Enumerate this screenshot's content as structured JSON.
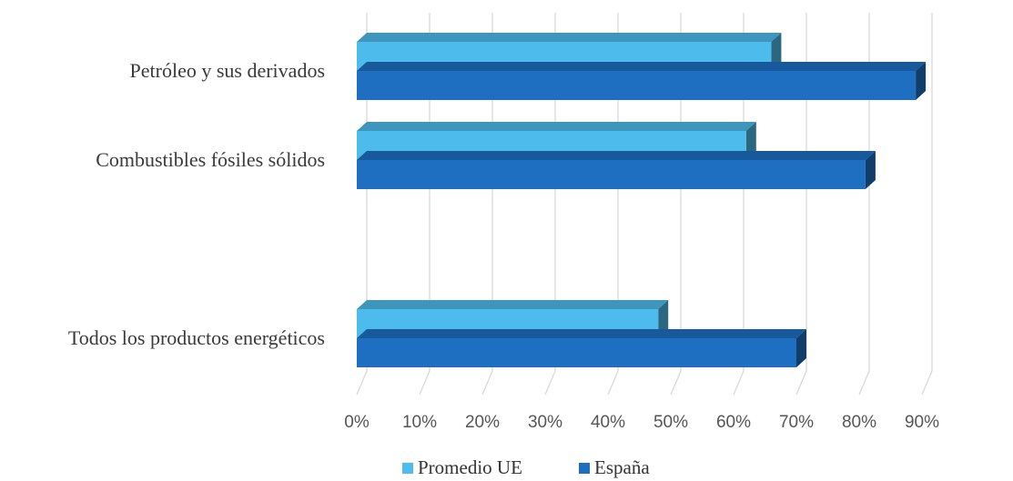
{
  "chart_data": {
    "type": "bar",
    "orientation": "horizontal",
    "style": "3d",
    "categories": [
      "Petróleo y sus derivados",
      "Combustibles fósiles sólidos",
      "",
      "Todos los productos energéticos"
    ],
    "series": [
      {
        "name": "Promedio UE",
        "color": "#4DBBEB",
        "values": [
          66,
          62,
          null,
          48
        ]
      },
      {
        "name": "España",
        "color": "#1E6FC2",
        "values": [
          89,
          81,
          null,
          70
        ]
      }
    ],
    "xlim": [
      0,
      90
    ],
    "xticks": [
      "0%",
      "10%",
      "20%",
      "30%",
      "40%",
      "50%",
      "60%",
      "70%",
      "80%",
      "90%"
    ],
    "grid": true,
    "legend_position": "bottom"
  }
}
